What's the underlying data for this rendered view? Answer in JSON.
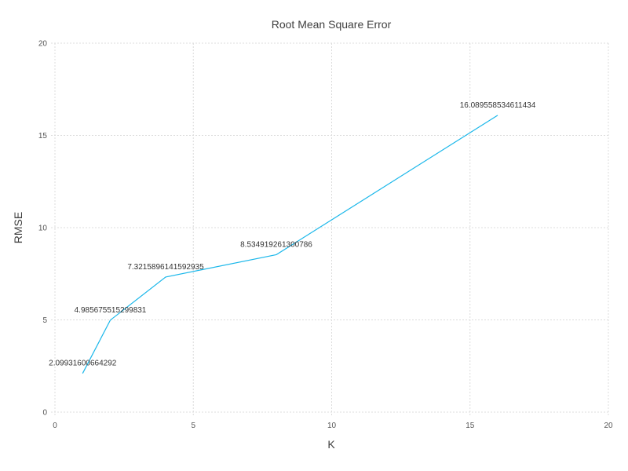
{
  "chart_data": {
    "type": "line",
    "title": "Root Mean Square Error",
    "xlabel": "K",
    "ylabel": "RMSE",
    "xlim": [
      0,
      20
    ],
    "ylim": [
      0,
      20
    ],
    "x_ticks": [
      "0",
      "5",
      "10",
      "15",
      "20"
    ],
    "y_ticks": [
      "0",
      "5",
      "10",
      "15",
      "20"
    ],
    "grid": true,
    "series": [
      {
        "color": "#1ab7ea",
        "points": [
          {
            "x": 1,
            "y": 2.09931600664292,
            "label": "2.09931600664292"
          },
          {
            "x": 2,
            "y": 4.985675515299831,
            "label": "4.985675515299831"
          },
          {
            "x": 4,
            "y": 7.3215896141592935,
            "label": "7.3215896141592935"
          },
          {
            "x": 8,
            "y": 8.534919261300786,
            "label": "8.534919261300786"
          },
          {
            "x": 16,
            "y": 16.089558534611434,
            "label": "16.089558534611434"
          }
        ]
      }
    ]
  }
}
